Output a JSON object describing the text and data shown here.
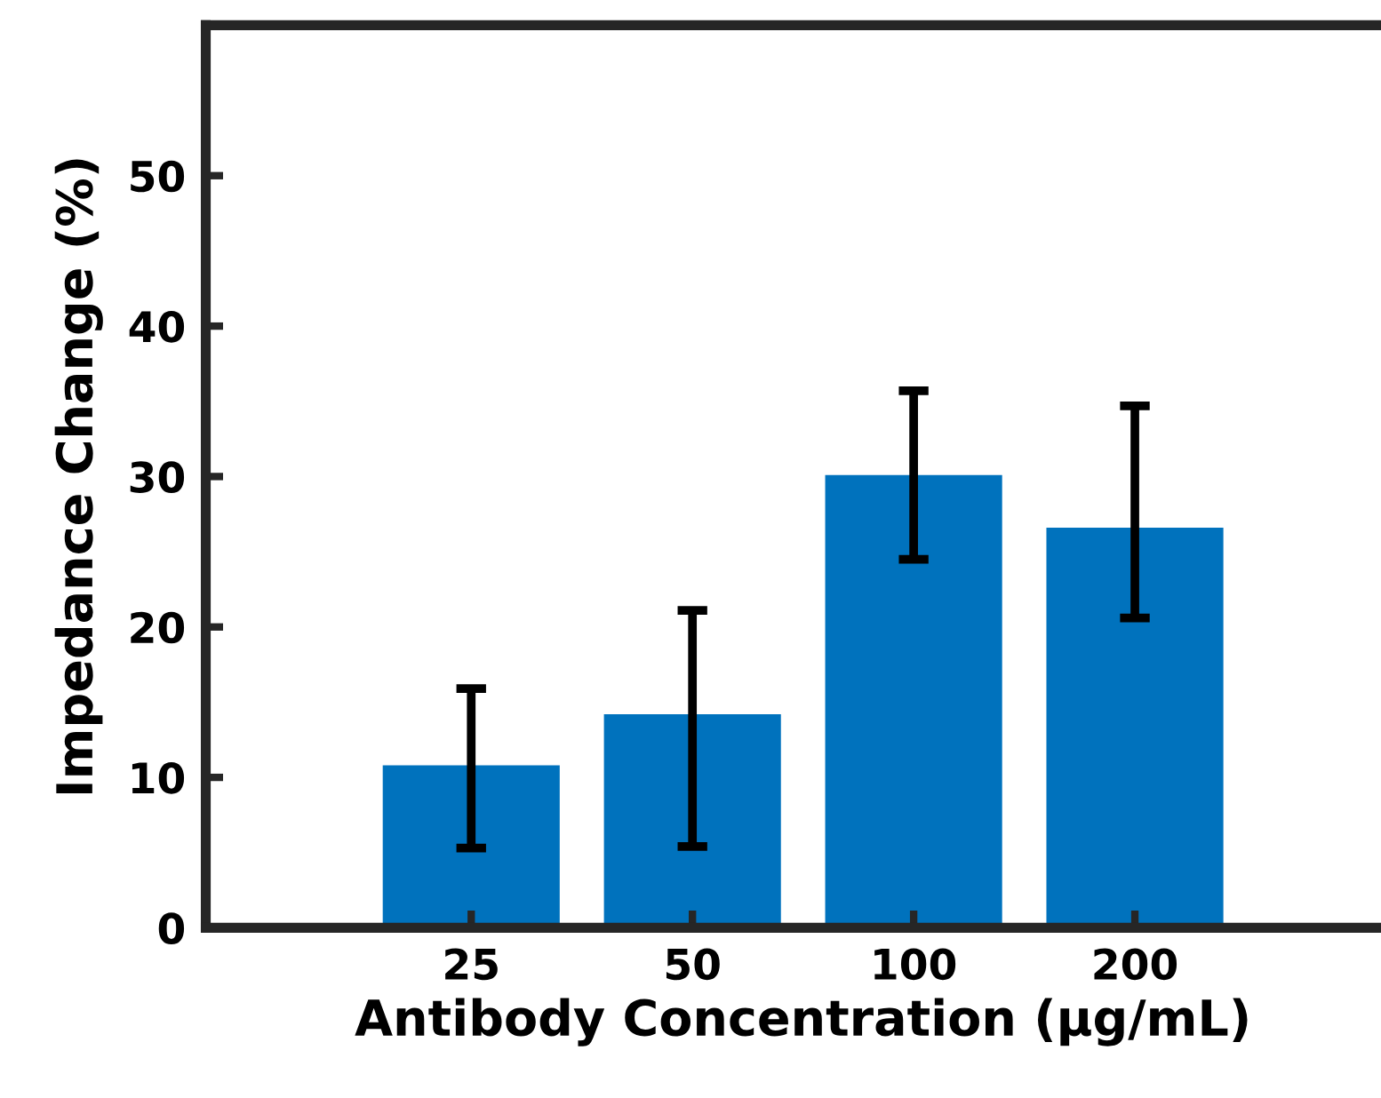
{
  "chart_data": {
    "type": "bar",
    "xlabel": "Antibody Concentration (µg/mL)",
    "ylabel": "Impedance Change (%)",
    "categories": [
      "25",
      "50",
      "100",
      "200"
    ],
    "values": [
      10.8,
      14.2,
      30.1,
      26.6
    ],
    "errors": [
      [
        5.3,
        15.9
      ],
      [
        5.4,
        21.1
      ],
      [
        24.5,
        35.7
      ],
      [
        20.6,
        34.7
      ]
    ],
    "color": "#0072bd",
    "ylim": [
      0,
      60
    ],
    "yticks": [
      0,
      10,
      20,
      30,
      40,
      50
    ],
    "grid": false
  }
}
